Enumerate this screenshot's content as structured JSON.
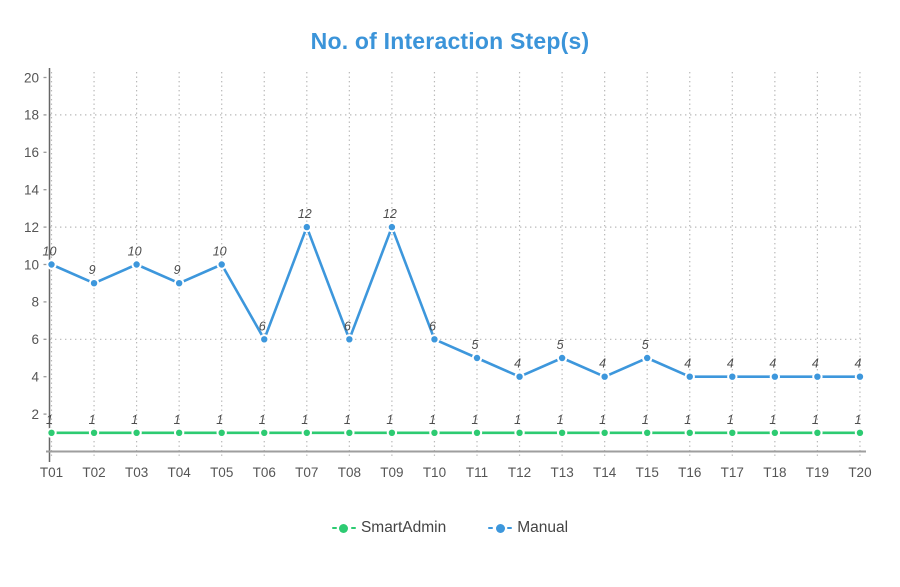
{
  "title": "No. of Interaction Step(s)",
  "chart_data": {
    "type": "line",
    "title": "No. of Interaction Step(s)",
    "title_color": "#3b94d9",
    "categories": [
      "T01",
      "T02",
      "T03",
      "T04",
      "T05",
      "T06",
      "T07",
      "T08",
      "T09",
      "T10",
      "T11",
      "T12",
      "T13",
      "T14",
      "T15",
      "T16",
      "T17",
      "T18",
      "T19",
      "T20"
    ],
    "series": [
      {
        "name": "SmartAdmin",
        "color": "#2dcb72",
        "values": [
          1,
          1,
          1,
          1,
          1,
          1,
          1,
          1,
          1,
          1,
          1,
          1,
          1,
          1,
          1,
          1,
          1,
          1,
          1,
          1
        ]
      },
      {
        "name": "Manual",
        "color": "#3d97dc",
        "values": [
          10,
          9,
          10,
          9,
          10,
          6,
          12,
          6,
          12,
          6,
          5,
          4,
          5,
          4,
          5,
          4,
          4,
          4,
          4,
          4
        ]
      }
    ],
    "ylim": [
      0,
      20
    ],
    "y_tick_labels": [
      2,
      4,
      6,
      8,
      10,
      12,
      14,
      16,
      18,
      20
    ],
    "h_gridline_values": [
      6,
      12,
      18
    ],
    "grid_style": "dotted",
    "point_labels": true,
    "point_label_style": "italic",
    "legend_position": "bottom",
    "label_color": "#555555",
    "point_label_color": "#4d4d4d",
    "grid_color": "#b8b8b8",
    "y_axis_color": "#666666",
    "x_axis_color": "#9e9e9e"
  }
}
